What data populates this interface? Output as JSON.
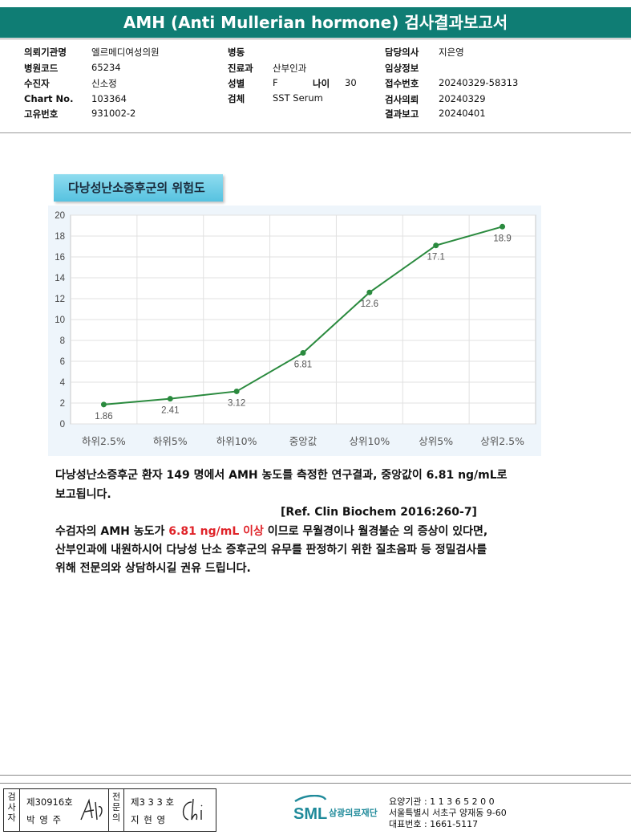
{
  "report": {
    "title": "AMH (Anti Mullerian hormone) 검사결과보고서"
  },
  "info": {
    "col1": [
      {
        "label": "의뢰기관명",
        "value": "엘르메디여성의원"
      },
      {
        "label": "병원코드",
        "value": "65234"
      },
      {
        "label": "수진자",
        "value": "신소정"
      },
      {
        "label": "Chart No.",
        "value": "103364"
      },
      {
        "label": "고유번호",
        "value": "931002-2"
      }
    ],
    "col2": [
      {
        "label": "병동",
        "value": ""
      },
      {
        "label": "진료과",
        "value": "산부인과"
      },
      {
        "label": "성별",
        "value": "F"
      },
      {
        "label": "검체",
        "value": "SST Serum"
      }
    ],
    "age": {
      "label": "나이",
      "value": "30"
    },
    "col3": [
      {
        "label": "담당의사",
        "value": "지은영"
      },
      {
        "label": "임상정보",
        "value": ""
      },
      {
        "label": "접수번호",
        "value": "20240329-58313"
      },
      {
        "label": "검사의뢰",
        "value": "20240329"
      },
      {
        "label": "결과보고",
        "value": "20240401"
      }
    ]
  },
  "section": {
    "title": "다낭성난소증후군의 위험도"
  },
  "chart_data": {
    "type": "line",
    "categories": [
      "하위2.5%",
      "하위5%",
      "하위10%",
      "중앙값",
      "상위10%",
      "상위5%",
      "상위2.5%"
    ],
    "values": [
      1.86,
      2.41,
      3.12,
      6.81,
      12.6,
      17.1,
      18.9
    ],
    "data_labels": [
      "1.86",
      "2.41",
      "3.12",
      "6.81",
      "12.6",
      "17.1",
      "18.9"
    ],
    "yticks": [
      "0",
      "2",
      "4",
      "6",
      "8",
      "10",
      "12",
      "14",
      "16",
      "18",
      "20"
    ],
    "ylim": [
      0,
      20
    ],
    "grid": true,
    "line_color": "#2a8a3e",
    "title": "",
    "xlabel": "",
    "ylabel": ""
  },
  "text": {
    "p1_line1": "다낭성난소증후군 환자 149 명에서 AMH 농도를 측정한 연구결과, 중앙값이 6.81 ng/mL로",
    "p1_line2": "보고됩니다.",
    "ref": "[Ref. Clin Biochem 2016:260-7]",
    "p2_line1_a": "수검자의 AMH 농도가 ",
    "p2_line1_red": "6.81 ng/mL 이상",
    "p2_line1_b": " 이므로 무월경이나 월경불순 의 증상이 있다면,",
    "p2_line2": "산부인과에 내원하시어 다낭성 난소 증후군의 유무를 판정하기 위한 질초음파 등 정밀검사를",
    "p2_line3": "위해 전문의와 상담하시길 권유 드립니다."
  },
  "footer": {
    "examiner_label": "검사자",
    "examiner_no": "제30916호",
    "examiner_name": "박 영 주",
    "specialist_label": "전문의",
    "specialist_no": "제3 3 3 호",
    "specialist_name": "지 현 영",
    "logo_text": "SML",
    "foundation": "삼광의료재단",
    "inst_no": "요양기관 : 1 1 3 6 5 2 0 0",
    "address": "서울특별시 서초구 양재동 9-60",
    "phone": "대표번호 : 1661-5117",
    "brand_color": "#1f8a9a"
  }
}
